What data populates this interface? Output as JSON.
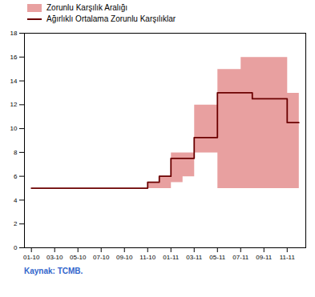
{
  "chart_data": {
    "type": "line",
    "xlim": [
      -0.3,
      11.8
    ],
    "xticks": [
      {
        "value": 0,
        "label": "01-10"
      },
      {
        "value": 1,
        "label": "03-10"
      },
      {
        "value": 2,
        "label": "05-10"
      },
      {
        "value": 3,
        "label": "07-10"
      },
      {
        "value": 4,
        "label": "09-10"
      },
      {
        "value": 5,
        "label": "11-10"
      },
      {
        "value": 6,
        "label": "01-11"
      },
      {
        "value": 7,
        "label": "03-11"
      },
      {
        "value": 8,
        "label": "05-11"
      },
      {
        "value": 9,
        "label": "07-11"
      },
      {
        "value": 10,
        "label": "09-11"
      },
      {
        "value": 11,
        "label": "11-11"
      }
    ],
    "ylim": [
      0,
      18
    ],
    "yticks": [
      0,
      2,
      4,
      6,
      8,
      10,
      12,
      14,
      16,
      18
    ],
    "grid": false,
    "legend": "upper left",
    "caption": {
      "text": "Kaynak: TCMB.",
      "color": "#3366cc"
    },
    "series": [
      {
        "name": "Zorunlu Karşılık Aralığı",
        "type": "area",
        "color": "#e8a0a0",
        "upper": [
          [
            0,
            5
          ],
          [
            5,
            5
          ],
          [
            5,
            5.5
          ],
          [
            5.5,
            5.5
          ],
          [
            5.5,
            6
          ],
          [
            6,
            6
          ],
          [
            6,
            8
          ],
          [
            7,
            8
          ],
          [
            7,
            12
          ],
          [
            8,
            12
          ],
          [
            8,
            15
          ],
          [
            9,
            15
          ],
          [
            9,
            16
          ],
          [
            11,
            16
          ],
          [
            11,
            13
          ],
          [
            11.5,
            13
          ]
        ],
        "lower": [
          [
            6,
            5
          ],
          [
            6,
            5.5
          ],
          [
            6.5,
            5.5
          ],
          [
            6.5,
            6
          ],
          [
            7,
            6
          ],
          [
            7,
            8
          ],
          [
            8,
            8
          ],
          [
            8,
            5
          ],
          [
            9,
            5
          ],
          [
            11.5,
            5
          ]
        ]
      },
      {
        "name": "Ağırlıklı Ortalama Zorunlu Karşılıklar",
        "type": "line",
        "color": "#6b0000",
        "x": [
          0,
          5,
          5,
          5.5,
          5.5,
          6,
          6,
          7,
          7,
          8,
          8,
          9.5,
          9.5,
          11,
          11,
          11.5
        ],
        "values": [
          5,
          5,
          5.5,
          5.5,
          6,
          6,
          7.5,
          7.5,
          9.25,
          9.25,
          13,
          13,
          12.5,
          12.5,
          10.5,
          10.5
        ]
      }
    ]
  }
}
